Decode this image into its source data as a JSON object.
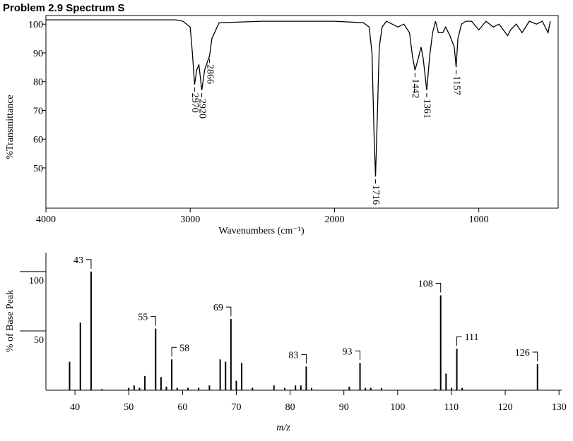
{
  "chart_data": [
    {
      "type": "line",
      "title": "Problem 2.9 Spectrum S",
      "x_label": "Wavenumbers (cm⁻¹)",
      "y_label": "%Transmittance",
      "x": [
        4000,
        3500,
        3100,
        3050,
        3000,
        2985,
        2970,
        2955,
        2940,
        2920,
        2900,
        2880,
        2866,
        2850,
        2800,
        2500,
        2000,
        1800,
        1760,
        1740,
        1725,
        1716,
        1705,
        1690,
        1670,
        1640,
        1600,
        1560,
        1520,
        1480,
        1460,
        1442,
        1420,
        1400,
        1385,
        1361,
        1340,
        1320,
        1300,
        1280,
        1250,
        1230,
        1200,
        1170,
        1157,
        1145,
        1120,
        1090,
        1050,
        1000,
        950,
        900,
        860,
        830,
        800,
        780,
        740,
        700,
        650,
        600,
        560,
        520,
        505
      ],
      "values": [
        101.5,
        101.5,
        101.5,
        101,
        99,
        90,
        79,
        84,
        86,
        77,
        84,
        87,
        89,
        95,
        100.5,
        101,
        101,
        100.5,
        99,
        90,
        60,
        47,
        65,
        92,
        99,
        101,
        100,
        99,
        100,
        97,
        89,
        84,
        88,
        92,
        88,
        77,
        89,
        97,
        101,
        97,
        97,
        99,
        96,
        92,
        85,
        95,
        100,
        101,
        101,
        98,
        101,
        99,
        100,
        98,
        96,
        98,
        100,
        97,
        101,
        100,
        101,
        97,
        101
      ],
      "color": "#000000",
      "xlim": [
        4000,
        450
      ],
      "ylim": [
        36,
        103
      ],
      "xticks": [
        4000,
        3000,
        2000,
        1000
      ],
      "yticks": [
        50,
        60,
        70,
        80,
        90,
        100
      ],
      "peak_labels": [
        2970,
        2920,
        2866,
        1716,
        1442,
        1361,
        1157
      ]
    },
    {
      "type": "bar",
      "x_label": "m/z",
      "y_label": "% of Base Peak",
      "x": [
        39,
        41,
        43,
        45,
        50,
        51,
        52,
        53,
        55,
        56,
        57,
        58,
        59,
        61,
        63,
        65,
        67,
        68,
        69,
        70,
        71,
        73,
        77,
        79,
        81,
        82,
        83,
        84,
        91,
        93,
        94,
        95,
        97,
        107,
        108,
        109,
        110,
        111,
        112,
        126
      ],
      "values": [
        24,
        57,
        100,
        1,
        2,
        4,
        2,
        12,
        52,
        11,
        3,
        26,
        2,
        2,
        2,
        4,
        26,
        24,
        60,
        8,
        23,
        2,
        4,
        2,
        4,
        4,
        20,
        2,
        3,
        23,
        2,
        2,
        2,
        1,
        80,
        14,
        2,
        35,
        2,
        22
      ],
      "color": "#000000",
      "xlim": [
        34.6,
        130.5
      ],
      "ylim": [
        0,
        116
      ],
      "xticks": [
        40,
        50,
        60,
        70,
        80,
        90,
        100,
        110,
        120,
        130
      ],
      "yticks": [
        50,
        100
      ],
      "peak_labels": [
        43,
        55,
        58,
        69,
        83,
        93,
        108,
        111,
        126
      ]
    }
  ]
}
